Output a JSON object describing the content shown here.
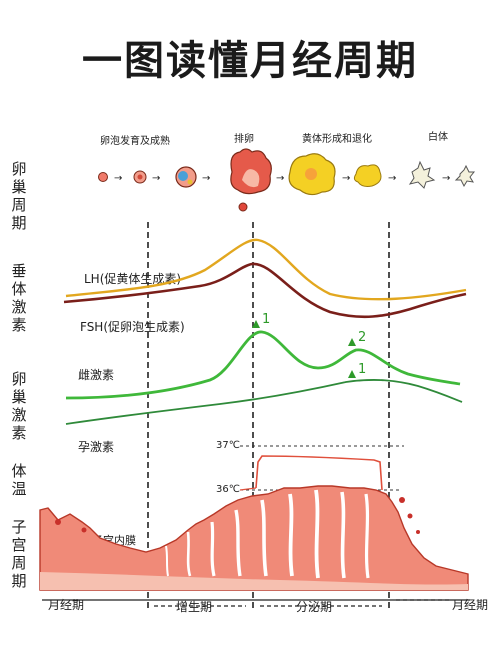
{
  "title": "一图读懂月经周期",
  "row_labels": {
    "ovary_cycle": "卵巢周期",
    "pituitary_hormones": "垂体激素",
    "ovarian_hormones": "卵巢激素",
    "body_temp": "体温",
    "uterus_cycle": "子宫周期"
  },
  "stages": {
    "follicle": "卵泡发育及成熟",
    "ovulation": "排卵",
    "corpus_luteum": "黄体形成和退化",
    "corpus_albicans": "白体"
  },
  "curves": {
    "lh": "LH(促黄体生成素)",
    "fsh": "FSH(促卵泡生成素)",
    "estrogen": "雌激素",
    "progesterone": "孕激素",
    "endometrium": "子宫内膜"
  },
  "peaks": {
    "estrogen_peak1": "1",
    "estrogen_peak2": "2",
    "progesterone_peak": "1"
  },
  "temps": {
    "high": "37℃",
    "low": "36℃"
  },
  "phases": {
    "menstrual_start": "月经期",
    "proliferative": "增生期",
    "secretory": "分泌期",
    "menstrual_end": "月经期"
  },
  "colors": {
    "lh": "#e2a71f",
    "fsh": "#7a1f1a",
    "estrogen": "#3fb83a",
    "progesterone": "#2f8a3a",
    "temperature": "#e0503c",
    "endometrium": "#f08a78"
  }
}
